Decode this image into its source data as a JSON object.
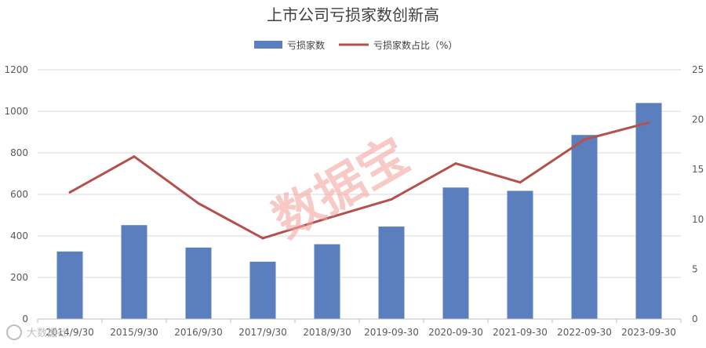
{
  "chart_data": {
    "type": "bar",
    "title": "上市公司亏损家数创新高",
    "categories": [
      "2014/9/30",
      "2015/9/30",
      "2016/9/30",
      "2017/9/30",
      "2018/9/30",
      "2019-09-30",
      "2020-09-30",
      "2021-09-30",
      "2022-09-30",
      "2023-09-30"
    ],
    "series": [
      {
        "name": "亏损家数",
        "type": "bar",
        "axis": "left",
        "color": "#5b7fbe",
        "values": [
          325,
          452,
          344,
          276,
          360,
          445,
          633,
          617,
          886,
          1040
        ]
      },
      {
        "name": "亏损家数占比（%）",
        "type": "line",
        "axis": "right",
        "color": "#b5514c",
        "values": [
          12.7,
          16.3,
          11.6,
          8.1,
          10.1,
          12.0,
          15.6,
          13.7,
          18.0,
          19.7
        ]
      }
    ],
    "y_left": {
      "ylim": [
        0,
        1200
      ],
      "ticks": [
        0,
        200,
        400,
        600,
        800,
        1000,
        1200
      ]
    },
    "y_right": {
      "ylim": [
        0,
        25
      ],
      "ticks": [
        0,
        5,
        10,
        15,
        20,
        25
      ]
    },
    "legend_placement": "top-center",
    "grid": true
  },
  "watermark": {
    "text": "数据宝"
  },
  "logo": {
    "text": "大数据社"
  }
}
